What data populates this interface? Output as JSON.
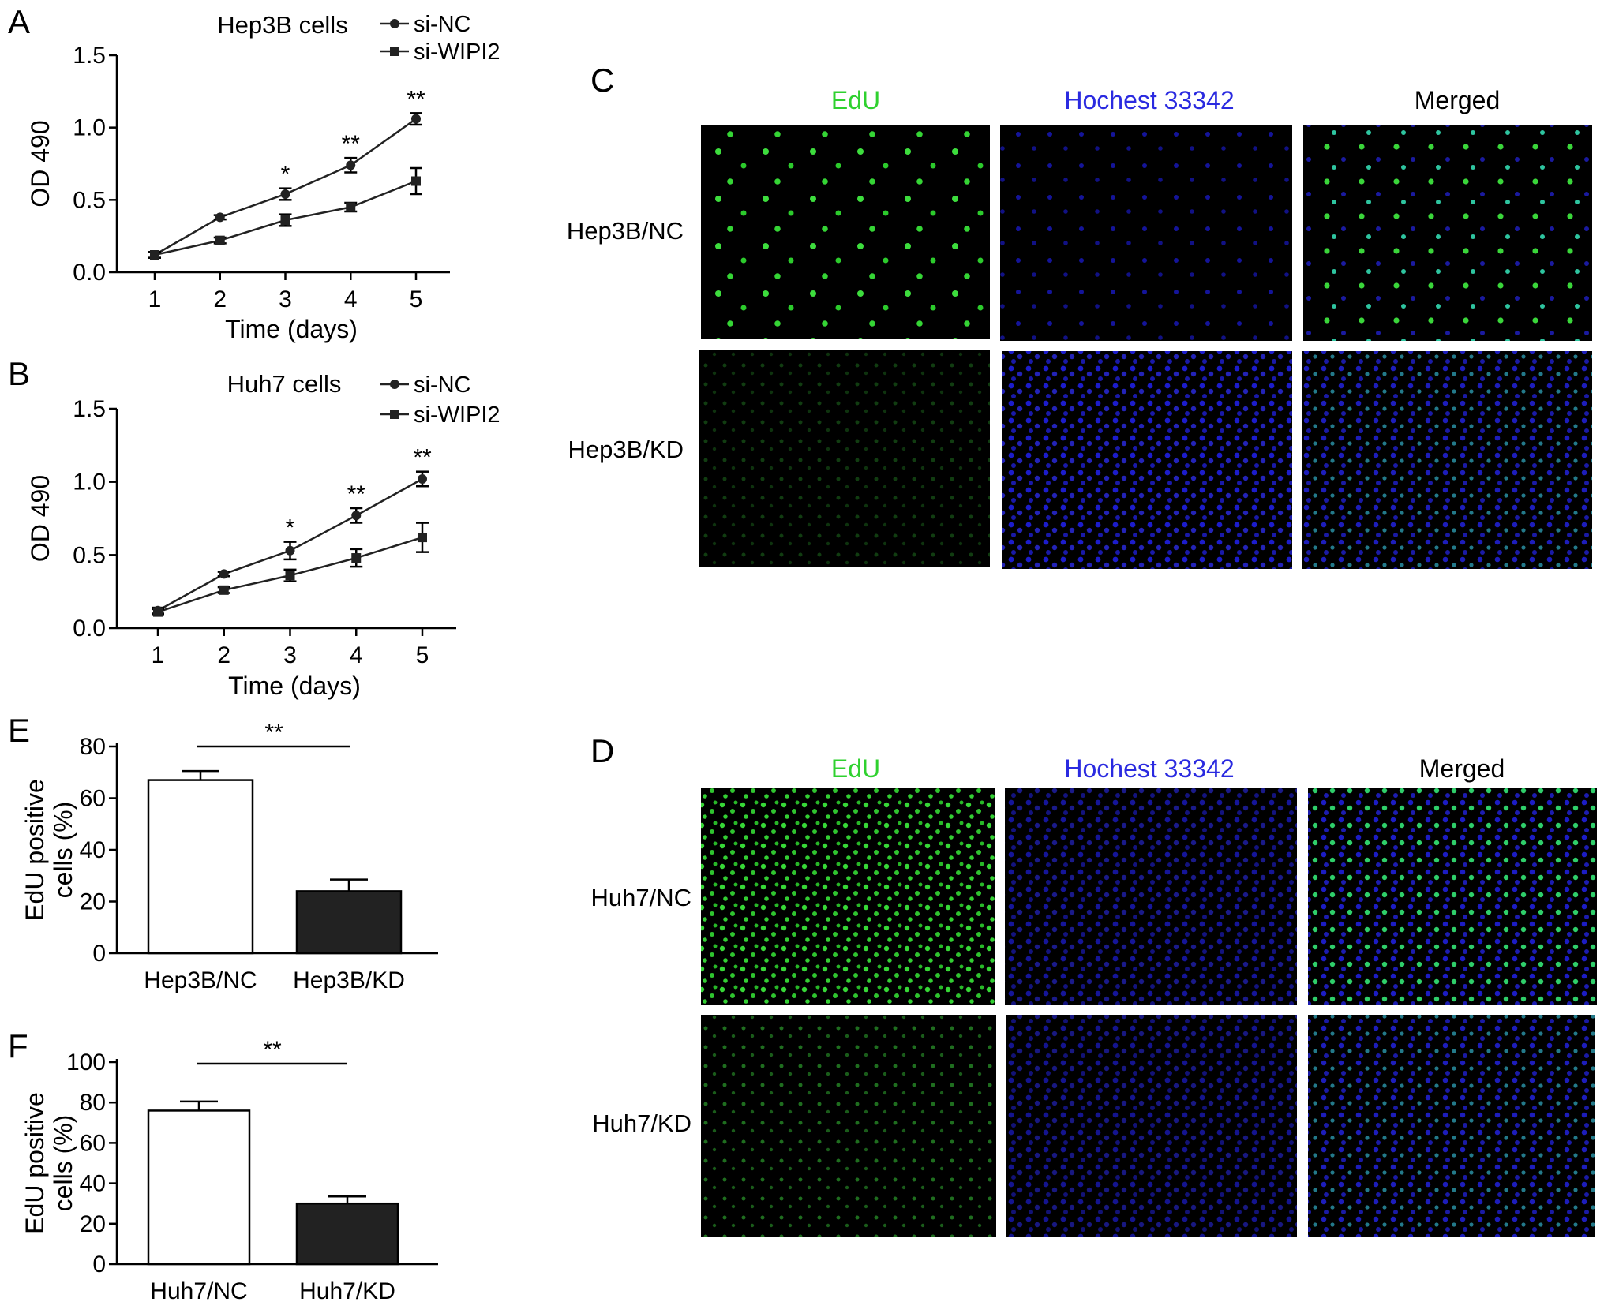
{
  "colors": {
    "edu": "#2fd12f",
    "hoechst": "#2a2ae0",
    "black": "#000000",
    "bar_fill_2": "#222222",
    "bar_fill_1": "#ffffff"
  },
  "panels": {
    "A": "A",
    "B": "B",
    "C": "C",
    "D": "D",
    "E": "E",
    "F": "F"
  },
  "micrograph_c": {
    "col_headers": [
      "EdU",
      "Hochest 33342",
      "Merged"
    ],
    "row_labels": [
      "Hep3B/NC",
      "Hep3B/KD"
    ]
  },
  "micrograph_d": {
    "col_headers": [
      "EdU",
      "Hochest 33342",
      "Merged"
    ],
    "row_labels": [
      "Huh7/NC",
      "Huh7/KD"
    ]
  },
  "chart_data": [
    {
      "id": "A",
      "type": "line",
      "title": "Hep3B cells",
      "xlabel": "Time (days)",
      "ylabel": "OD 490",
      "x": [
        1,
        2,
        3,
        4,
        5
      ],
      "xticks": [
        "1",
        "2",
        "3",
        "4",
        "5"
      ],
      "yticks": [
        "0.0",
        "0.5",
        "1.0",
        "1.5"
      ],
      "ylim": [
        0,
        1.5
      ],
      "legend_position": "top-right",
      "series": [
        {
          "name": "si-NC",
          "marker": "circle",
          "values": [
            0.12,
            0.38,
            0.54,
            0.74,
            1.06
          ],
          "errors": [
            0.02,
            0.015,
            0.04,
            0.05,
            0.04
          ]
        },
        {
          "name": "si-WIPI2",
          "marker": "square",
          "values": [
            0.12,
            0.22,
            0.36,
            0.45,
            0.63
          ],
          "errors": [
            0.02,
            0.02,
            0.04,
            0.03,
            0.09
          ]
        }
      ],
      "significance": [
        {
          "x": 3,
          "label": "*"
        },
        {
          "x": 4,
          "label": "**"
        },
        {
          "x": 5,
          "label": "**"
        }
      ]
    },
    {
      "id": "B",
      "type": "line",
      "title": "Huh7 cells",
      "xlabel": "Time (days)",
      "ylabel": "OD 490",
      "x": [
        1,
        2,
        3,
        4,
        5
      ],
      "xticks": [
        "1",
        "2",
        "3",
        "4",
        "5"
      ],
      "yticks": [
        "0.0",
        "0.5",
        "1.0",
        "1.5"
      ],
      "ylim": [
        0,
        1.5
      ],
      "legend_position": "top-right",
      "series": [
        {
          "name": "si-NC",
          "marker": "circle",
          "values": [
            0.12,
            0.37,
            0.53,
            0.77,
            1.02
          ],
          "errors": [
            0.02,
            0.015,
            0.06,
            0.05,
            0.05
          ]
        },
        {
          "name": "si-WIPI2",
          "marker": "square",
          "values": [
            0.11,
            0.26,
            0.36,
            0.48,
            0.62
          ],
          "errors": [
            0.02,
            0.02,
            0.04,
            0.06,
            0.1
          ]
        }
      ],
      "significance": [
        {
          "x": 3,
          "label": "*"
        },
        {
          "x": 4,
          "label": "**"
        },
        {
          "x": 5,
          "label": "**"
        }
      ]
    },
    {
      "id": "E",
      "type": "bar",
      "ylabel": "EdU positive cells (%)",
      "ylabel_lines": [
        "EdU positive",
        "cells (%)"
      ],
      "categories": [
        "Hep3B/NC",
        "Hep3B/KD"
      ],
      "values": [
        67,
        24
      ],
      "errors": [
        3.5,
        4.5
      ],
      "yticks": [
        "0",
        "20",
        "40",
        "60",
        "80"
      ],
      "ylim": [
        0,
        80
      ],
      "significance": "**"
    },
    {
      "id": "F",
      "type": "bar",
      "ylabel": "EdU positive cells (%)",
      "ylabel_lines": [
        "EdU positive",
        "cells (%)"
      ],
      "categories": [
        "Huh7/NC",
        "Huh7/KD"
      ],
      "values": [
        76,
        30
      ],
      "errors": [
        4.5,
        3.5
      ],
      "yticks": [
        "0",
        "20",
        "40",
        "60",
        "80",
        "100"
      ],
      "ylim": [
        0,
        100
      ],
      "significance": "**"
    }
  ]
}
